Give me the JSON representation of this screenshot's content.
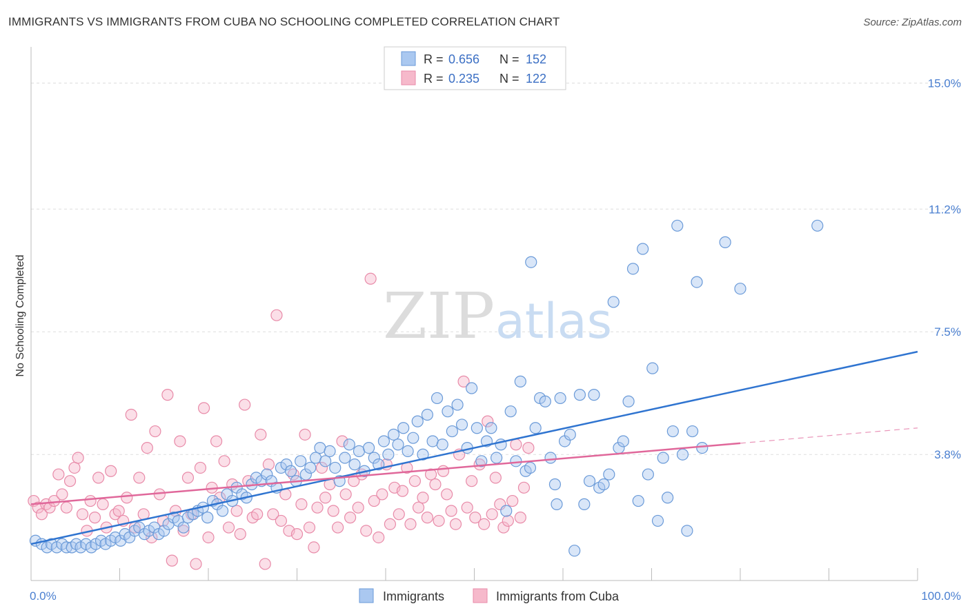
{
  "header": {
    "title": "IMMIGRANTS VS IMMIGRANTS FROM CUBA NO SCHOOLING COMPLETED CORRELATION CHART",
    "source": "Source: ZipAtlas.com"
  },
  "watermark": {
    "zip": "ZIP",
    "atlas": "atlas"
  },
  "colors": {
    "blue_fill": "#aac8f0",
    "blue_stroke": "#6a9ad8",
    "blue_line": "#2f74d0",
    "pink_fill": "#f6b9cb",
    "pink_stroke": "#e88aa8",
    "pink_line": "#e0679a",
    "tick_text": "#4a7fd0",
    "grid": "#dddddd"
  },
  "chart_data": {
    "type": "scatter",
    "title": "IMMIGRANTS VS IMMIGRANTS FROM CUBA NO SCHOOLING COMPLETED CORRELATION CHART",
    "xlabel": "",
    "ylabel": "No Schooling Completed",
    "xlim": [
      0,
      100
    ],
    "ylim": [
      0,
      15.8
    ],
    "x_tick_labels": [
      "0.0%",
      "100.0%"
    ],
    "y_ticks": [
      3.8,
      7.5,
      11.2,
      15.0
    ],
    "y_tick_labels": [
      "3.8%",
      "7.5%",
      "11.2%",
      "15.0%"
    ],
    "grid": "horizontal dashed",
    "legend_position": "top-center and bottom",
    "legend_stats": [
      {
        "r_label": "R =",
        "r_value": "0.656",
        "n_label": "N =",
        "n_value": "152"
      },
      {
        "r_label": "R =",
        "r_value": "0.235",
        "n_label": "N =",
        "n_value": "122"
      }
    ],
    "series": [
      {
        "name": "Immigrants",
        "color": "blue",
        "trend": {
          "x": [
            0,
            100
          ],
          "y": [
            1.1,
            6.9
          ],
          "dashed_from": null
        },
        "points": [
          [
            0.5,
            1.2
          ],
          [
            1.2,
            1.1
          ],
          [
            1.8,
            1.0
          ],
          [
            2.3,
            1.1
          ],
          [
            2.9,
            1.0
          ],
          [
            3.5,
            1.1
          ],
          [
            4.0,
            1.0
          ],
          [
            4.6,
            1.0
          ],
          [
            5.1,
            1.1
          ],
          [
            5.6,
            1.0
          ],
          [
            6.2,
            1.1
          ],
          [
            6.8,
            1.0
          ],
          [
            7.3,
            1.1
          ],
          [
            7.9,
            1.2
          ],
          [
            8.4,
            1.1
          ],
          [
            9.0,
            1.2
          ],
          [
            9.5,
            1.3
          ],
          [
            10.1,
            1.2
          ],
          [
            10.6,
            1.4
          ],
          [
            11.1,
            1.3
          ],
          [
            11.7,
            1.5
          ],
          [
            12.2,
            1.6
          ],
          [
            12.8,
            1.4
          ],
          [
            13.3,
            1.5
          ],
          [
            13.9,
            1.6
          ],
          [
            14.4,
            1.4
          ],
          [
            15.0,
            1.5
          ],
          [
            15.5,
            1.7
          ],
          [
            16.1,
            1.9
          ],
          [
            16.6,
            1.8
          ],
          [
            17.2,
            1.6
          ],
          [
            17.7,
            1.9
          ],
          [
            18.3,
            2.0
          ],
          [
            18.8,
            2.1
          ],
          [
            19.4,
            2.2
          ],
          [
            19.9,
            1.9
          ],
          [
            20.5,
            2.4
          ],
          [
            21.0,
            2.3
          ],
          [
            21.6,
            2.1
          ],
          [
            22.1,
            2.6
          ],
          [
            22.7,
            2.4
          ],
          [
            23.2,
            2.8
          ],
          [
            23.8,
            2.6
          ],
          [
            24.3,
            2.5
          ],
          [
            24.9,
            2.9
          ],
          [
            25.4,
            3.1
          ],
          [
            26.0,
            3.0
          ],
          [
            26.6,
            3.2
          ],
          [
            27.1,
            3.0
          ],
          [
            27.7,
            2.8
          ],
          [
            28.2,
            3.4
          ],
          [
            28.8,
            3.5
          ],
          [
            29.3,
            3.3
          ],
          [
            29.9,
            3.0
          ],
          [
            30.4,
            3.6
          ],
          [
            31.0,
            3.2
          ],
          [
            31.5,
            3.4
          ],
          [
            32.1,
            3.7
          ],
          [
            32.6,
            4.0
          ],
          [
            33.2,
            3.6
          ],
          [
            33.7,
            3.9
          ],
          [
            34.3,
            3.4
          ],
          [
            34.8,
            3.0
          ],
          [
            35.4,
            3.7
          ],
          [
            35.9,
            4.1
          ],
          [
            36.5,
            3.5
          ],
          [
            37.0,
            3.9
          ],
          [
            37.6,
            3.3
          ],
          [
            38.1,
            4.0
          ],
          [
            38.7,
            3.7
          ],
          [
            39.2,
            3.5
          ],
          [
            39.8,
            4.2
          ],
          [
            40.3,
            3.8
          ],
          [
            40.9,
            4.4
          ],
          [
            41.4,
            4.1
          ],
          [
            42.0,
            4.6
          ],
          [
            42.5,
            3.9
          ],
          [
            43.1,
            4.3
          ],
          [
            43.6,
            4.8
          ],
          [
            44.2,
            3.8
          ],
          [
            44.7,
            5.0
          ],
          [
            45.3,
            4.2
          ],
          [
            45.8,
            5.5
          ],
          [
            46.4,
            4.1
          ],
          [
            47.0,
            5.1
          ],
          [
            47.5,
            4.5
          ],
          [
            48.1,
            5.3
          ],
          [
            48.6,
            4.7
          ],
          [
            49.2,
            4.0
          ],
          [
            49.7,
            5.8
          ],
          [
            50.3,
            4.6
          ],
          [
            50.8,
            3.6
          ],
          [
            51.4,
            4.2
          ],
          [
            51.9,
            4.6
          ],
          [
            52.5,
            3.7
          ],
          [
            53.0,
            4.1
          ],
          [
            53.6,
            2.1
          ],
          [
            54.1,
            5.1
          ],
          [
            54.7,
            3.6
          ],
          [
            55.2,
            6.0
          ],
          [
            55.8,
            3.3
          ],
          [
            56.3,
            3.4
          ],
          [
            56.9,
            4.6
          ],
          [
            57.4,
            5.5
          ],
          [
            58.0,
            5.4
          ],
          [
            58.6,
            3.7
          ],
          [
            59.1,
            2.9
          ],
          [
            59.7,
            5.5
          ],
          [
            60.2,
            4.2
          ],
          [
            60.8,
            4.4
          ],
          [
            61.3,
            0.9
          ],
          [
            61.9,
            5.6
          ],
          [
            62.4,
            2.3
          ],
          [
            63.0,
            3.0
          ],
          [
            63.5,
            5.6
          ],
          [
            64.1,
            2.8
          ],
          [
            64.6,
            2.9
          ],
          [
            65.2,
            3.2
          ],
          [
            65.7,
            8.4
          ],
          [
            66.3,
            4.0
          ],
          [
            66.8,
            4.2
          ],
          [
            67.4,
            5.4
          ],
          [
            67.9,
            9.4
          ],
          [
            68.5,
            2.4
          ],
          [
            69.0,
            10.0
          ],
          [
            69.6,
            3.2
          ],
          [
            70.1,
            6.4
          ],
          [
            70.7,
            1.8
          ],
          [
            71.3,
            3.7
          ],
          [
            71.8,
            2.5
          ],
          [
            72.4,
            4.5
          ],
          [
            72.9,
            10.7
          ],
          [
            73.5,
            3.8
          ],
          [
            74.0,
            1.5
          ],
          [
            74.6,
            4.5
          ],
          [
            75.1,
            9.0
          ],
          [
            75.7,
            4.0
          ],
          [
            88.7,
            10.7
          ],
          [
            78.3,
            10.2
          ],
          [
            80.0,
            8.8
          ],
          [
            59.3,
            2.3
          ],
          [
            56.4,
            9.6
          ]
        ]
      },
      {
        "name": "Immigrants from Cuba",
        "color": "pink",
        "trend": {
          "x": [
            0,
            100
          ],
          "y": [
            2.3,
            4.6
          ],
          "dashed_from": 80
        },
        "points": [
          [
            0.3,
            2.4
          ],
          [
            0.8,
            2.2
          ],
          [
            1.2,
            2.0
          ],
          [
            1.7,
            2.3
          ],
          [
            2.1,
            2.2
          ],
          [
            2.6,
            2.4
          ],
          [
            3.1,
            3.2
          ],
          [
            3.5,
            2.6
          ],
          [
            4.0,
            2.2
          ],
          [
            4.4,
            3.0
          ],
          [
            4.9,
            3.4
          ],
          [
            5.3,
            3.7
          ],
          [
            5.8,
            2.0
          ],
          [
            6.3,
            1.5
          ],
          [
            6.7,
            2.4
          ],
          [
            7.2,
            1.9
          ],
          [
            7.6,
            3.1
          ],
          [
            8.1,
            2.3
          ],
          [
            8.5,
            1.6
          ],
          [
            9.0,
            3.3
          ],
          [
            9.5,
            2.0
          ],
          [
            9.9,
            2.1
          ],
          [
            10.4,
            1.8
          ],
          [
            10.8,
            2.5
          ],
          [
            11.3,
            5.0
          ],
          [
            11.7,
            1.6
          ],
          [
            12.2,
            3.1
          ],
          [
            12.7,
            2.0
          ],
          [
            13.1,
            4.0
          ],
          [
            13.6,
            1.3
          ],
          [
            14.0,
            4.5
          ],
          [
            14.5,
            2.6
          ],
          [
            14.9,
            1.8
          ],
          [
            15.4,
            5.6
          ],
          [
            15.9,
            0.6
          ],
          [
            16.3,
            2.1
          ],
          [
            16.8,
            4.2
          ],
          [
            17.2,
            1.5
          ],
          [
            17.7,
            3.1
          ],
          [
            18.1,
            2.0
          ],
          [
            18.6,
            0.5
          ],
          [
            19.1,
            3.4
          ],
          [
            19.5,
            5.2
          ],
          [
            20.0,
            1.3
          ],
          [
            20.4,
            2.8
          ],
          [
            20.9,
            4.2
          ],
          [
            21.3,
            2.5
          ],
          [
            21.8,
            3.6
          ],
          [
            22.3,
            1.6
          ],
          [
            22.7,
            2.9
          ],
          [
            23.2,
            2.1
          ],
          [
            23.6,
            1.4
          ],
          [
            24.1,
            5.3
          ],
          [
            24.5,
            3.0
          ],
          [
            25.0,
            1.9
          ],
          [
            25.5,
            2.0
          ],
          [
            25.9,
            4.4
          ],
          [
            26.4,
            0.5
          ],
          [
            26.8,
            3.5
          ],
          [
            27.3,
            2.0
          ],
          [
            27.7,
            8.0
          ],
          [
            28.2,
            1.8
          ],
          [
            28.7,
            2.6
          ],
          [
            29.1,
            1.5
          ],
          [
            29.6,
            3.2
          ],
          [
            30.0,
            1.4
          ],
          [
            30.5,
            2.3
          ],
          [
            30.9,
            4.4
          ],
          [
            31.4,
            1.6
          ],
          [
            31.9,
            1.0
          ],
          [
            32.3,
            2.2
          ],
          [
            32.8,
            3.4
          ],
          [
            33.2,
            2.5
          ],
          [
            33.7,
            2.9
          ],
          [
            34.1,
            2.1
          ],
          [
            34.6,
            1.6
          ],
          [
            35.1,
            4.2
          ],
          [
            35.5,
            2.6
          ],
          [
            36.0,
            1.9
          ],
          [
            36.4,
            3.0
          ],
          [
            36.9,
            2.2
          ],
          [
            37.3,
            3.2
          ],
          [
            37.8,
            1.5
          ],
          [
            38.3,
            9.1
          ],
          [
            38.7,
            2.4
          ],
          [
            39.2,
            1.3
          ],
          [
            39.6,
            2.6
          ],
          [
            40.1,
            3.5
          ],
          [
            40.5,
            1.7
          ],
          [
            41.0,
            2.8
          ],
          [
            41.5,
            2.0
          ],
          [
            41.9,
            2.7
          ],
          [
            42.4,
            3.4
          ],
          [
            42.8,
            1.7
          ],
          [
            43.3,
            3.0
          ],
          [
            43.7,
            2.2
          ],
          [
            44.2,
            2.5
          ],
          [
            44.7,
            1.9
          ],
          [
            45.1,
            3.2
          ],
          [
            45.6,
            2.9
          ],
          [
            46.0,
            1.8
          ],
          [
            46.5,
            3.3
          ],
          [
            46.9,
            2.6
          ],
          [
            47.4,
            2.1
          ],
          [
            47.9,
            1.7
          ],
          [
            48.3,
            3.8
          ],
          [
            48.8,
            6.0
          ],
          [
            49.2,
            2.2
          ],
          [
            49.7,
            3.0
          ],
          [
            50.1,
            1.9
          ],
          [
            50.6,
            3.5
          ],
          [
            51.1,
            1.7
          ],
          [
            51.5,
            4.8
          ],
          [
            52.0,
            2.0
          ],
          [
            52.4,
            3.1
          ],
          [
            52.9,
            2.3
          ],
          [
            53.3,
            1.6
          ],
          [
            53.8,
            1.8
          ],
          [
            54.3,
            2.4
          ],
          [
            54.7,
            4.1
          ],
          [
            55.2,
            1.9
          ],
          [
            55.6,
            2.8
          ],
          [
            56.1,
            4.0
          ]
        ]
      }
    ]
  }
}
